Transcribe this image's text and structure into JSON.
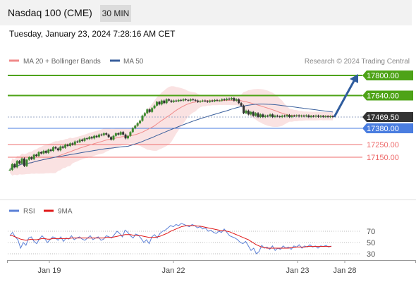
{
  "header": {
    "instrument": "Nasdaq 100 (CME)",
    "timeframe": "30 MIN"
  },
  "timestamp": "Tuesday, January 23, 2024 7:28:16 AM CET",
  "credit": "Research © 2024 Trading Central",
  "colors": {
    "resistance": "#4ea317",
    "pivot": "#4a7de0",
    "support": "#ee6b6b",
    "current": "#333333",
    "candle_up": "#3d8a2e",
    "candle_down": "#333333",
    "ma20": "#f08a8a",
    "band": "#f8d6d6",
    "ma50": "#3a5f9c",
    "arrow": "#2f5c9e",
    "rsi": "#5a7fd6",
    "rsi_ma": "#e01818"
  },
  "chart_data": [
    {
      "type": "candlestick",
      "legend": [
        {
          "name": "MA 20 + Bollinger Bands"
        },
        {
          "name": "MA 50"
        }
      ],
      "ylim": [
        17035,
        17880
      ],
      "x_ticks": [
        "Jan 19",
        "Jan 22",
        "Jan 23",
        "Jan 28"
      ],
      "current_price": 17469.5,
      "levels": [
        {
          "label": "17800.00",
          "value": 17800,
          "kind": "resistance"
        },
        {
          "label": "17640.00",
          "value": 17640,
          "kind": "resistance"
        },
        {
          "label": "17469.50",
          "value": 17469.5,
          "kind": "current"
        },
        {
          "label": "17380.00",
          "value": 17380,
          "kind": "pivot"
        },
        {
          "label": "17250.00",
          "value": 17250,
          "kind": "support"
        },
        {
          "label": "17150.00",
          "value": 17150,
          "kind": "support"
        }
      ],
      "closes": [
        17050,
        17095,
        17070,
        17120,
        17100,
        17140,
        17080,
        17130,
        17150,
        17135,
        17170,
        17160,
        17190,
        17180,
        17200,
        17185,
        17210,
        17200,
        17230,
        17220,
        17205,
        17235,
        17225,
        17250,
        17240,
        17260,
        17250,
        17275,
        17270,
        17290,
        17280,
        17300,
        17295,
        17310,
        17300,
        17320,
        17310,
        17330,
        17325,
        17340,
        17330,
        17310,
        17290,
        17320,
        17340,
        17330,
        17350,
        17330,
        17300,
        17320,
        17350,
        17380,
        17400,
        17420,
        17440,
        17480,
        17500,
        17530,
        17510,
        17540,
        17560,
        17590,
        17570,
        17600,
        17580,
        17610,
        17600,
        17590,
        17600,
        17595,
        17605,
        17600,
        17610,
        17605,
        17600,
        17610,
        17605,
        17600,
        17590,
        17595,
        17600,
        17595,
        17590,
        17600,
        17595,
        17605,
        17600,
        17600,
        17610,
        17605,
        17615,
        17610,
        17620,
        17600,
        17610,
        17580,
        17560,
        17500,
        17520,
        17490,
        17510,
        17480,
        17500,
        17470,
        17490,
        17470,
        17480,
        17475,
        17490,
        17470,
        17480,
        17475,
        17470,
        17480,
        17475,
        17485,
        17470,
        17480,
        17478,
        17482,
        17475,
        17480,
        17476,
        17482,
        17470,
        17478,
        17474,
        17480,
        17472,
        17478,
        17471,
        17476,
        17470,
        17475,
        17469.5
      ],
      "ma50": [
        17045,
        17480
      ],
      "ma20": [
        17090,
        17530,
        17490
      ],
      "forecast_target": 17800
    },
    {
      "type": "line",
      "legend": [
        {
          "name": "RSI"
        },
        {
          "name": "9MA"
        }
      ],
      "ylim": [
        15,
        90
      ],
      "y_ticks": [
        70,
        50,
        30
      ],
      "rsi": [
        62,
        68,
        60,
        55,
        40,
        50,
        45,
        58,
        60,
        52,
        48,
        56,
        62,
        57,
        50,
        55,
        60,
        58,
        54,
        60,
        52,
        58,
        56,
        62,
        55,
        58,
        60,
        56,
        54,
        58,
        62,
        55,
        58,
        60,
        54,
        56,
        62,
        60,
        58,
        64,
        70,
        66,
        60,
        72,
        68,
        62,
        58,
        65,
        63,
        57,
        50,
        55,
        48,
        60,
        64,
        58,
        66,
        70,
        72,
        76,
        80,
        78,
        82,
        80,
        84,
        82,
        80,
        78,
        82,
        80,
        76,
        78,
        74,
        76,
        70,
        72,
        68,
        66,
        70,
        68,
        74,
        68,
        62,
        60,
        58,
        55,
        50,
        48,
        52,
        44,
        36,
        40,
        30,
        34,
        45,
        40,
        42,
        38,
        44,
        36,
        40,
        38,
        44,
        40,
        42,
        38,
        44,
        42,
        46,
        40,
        44,
        42,
        46,
        42,
        44,
        40,
        44,
        43,
        45,
        42,
        44
      ],
      "rsi_ma": [
        63,
        62,
        60,
        58,
        56,
        55,
        54,
        55,
        56,
        55,
        55,
        56,
        57,
        57,
        56,
        56,
        57,
        57,
        57,
        57,
        57,
        57,
        57,
        58,
        58,
        58,
        58,
        58,
        58,
        58,
        58,
        58,
        58,
        58,
        58,
        58,
        59,
        59,
        59,
        60,
        61,
        62,
        63,
        64,
        64,
        64,
        63,
        63,
        62,
        62,
        61,
        60,
        59,
        59,
        59,
        60,
        61,
        63,
        65,
        67,
        70,
        72,
        74,
        76,
        78,
        79,
        80,
        80,
        80,
        80,
        79,
        79,
        78,
        77,
        76,
        75,
        74,
        73,
        72,
        71,
        71,
        70,
        69,
        67,
        65,
        63,
        61,
        59,
        57,
        55,
        52,
        49,
        46,
        44,
        42,
        41,
        40,
        40,
        40,
        40,
        40,
        40,
        40,
        40,
        40,
        41,
        41,
        42,
        42,
        42,
        42,
        43,
        43,
        43,
        43,
        43,
        43,
        43,
        43,
        43,
        43
      ]
    }
  ]
}
